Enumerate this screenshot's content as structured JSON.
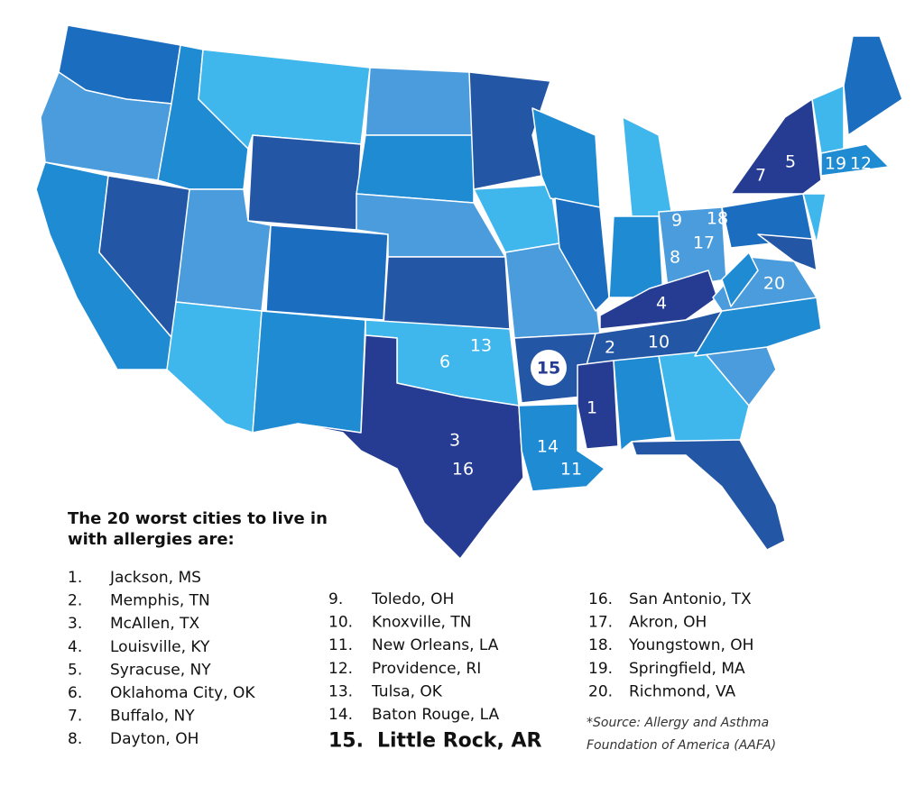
{
  "title": [
    "The 20 worst cities to live in",
    "with allergies are:"
  ],
  "cities": [
    {
      "rank": "1.",
      "city": "Jackson, MS"
    },
    {
      "rank": "2.",
      "city": "Memphis, TN"
    },
    {
      "rank": "3.",
      "city": "McAllen, TX"
    },
    {
      "rank": "4.",
      "city": "Louisville, KY"
    },
    {
      "rank": "5.",
      "city": "Syracuse, NY"
    },
    {
      "rank": "6.",
      "city": "Oklahoma City, OK"
    },
    {
      "rank": "7.",
      "city": "Buffalo, NY"
    },
    {
      "rank": "8.",
      "city": "Dayton, OH"
    },
    {
      "rank": "9.",
      "city": "Toledo, OH"
    },
    {
      "rank": "10.",
      "city": "Knoxville, TN"
    },
    {
      "rank": "11.",
      "city": "New Orleans, LA"
    },
    {
      "rank": "12.",
      "city": "Providence, RI"
    },
    {
      "rank": "13.",
      "city": "Tulsa, OK"
    },
    {
      "rank": "14.",
      "city": "Baton Rouge, LA"
    },
    {
      "rank": "15.",
      "city": "Little Rock, AR"
    },
    {
      "rank": "16.",
      "city": "San Antonio, TX"
    },
    {
      "rank": "17.",
      "city": "Akron, OH"
    },
    {
      "rank": "18.",
      "city": "Youngstown, OH"
    },
    {
      "rank": "19.",
      "city": "Springfield, MA"
    },
    {
      "rank": "20.",
      "city": "Richmond, VA"
    }
  ],
  "source": [
    "*Source: Allergy and Asthma",
    "Foundation of America (AAFA)"
  ],
  "map_labels": [
    "1",
    "2",
    "3",
    "4",
    "5",
    "6",
    "7",
    "8",
    "9",
    "10",
    "11",
    "12",
    "13",
    "14",
    "15",
    "16",
    "17",
    "18",
    "19",
    "20"
  ]
}
